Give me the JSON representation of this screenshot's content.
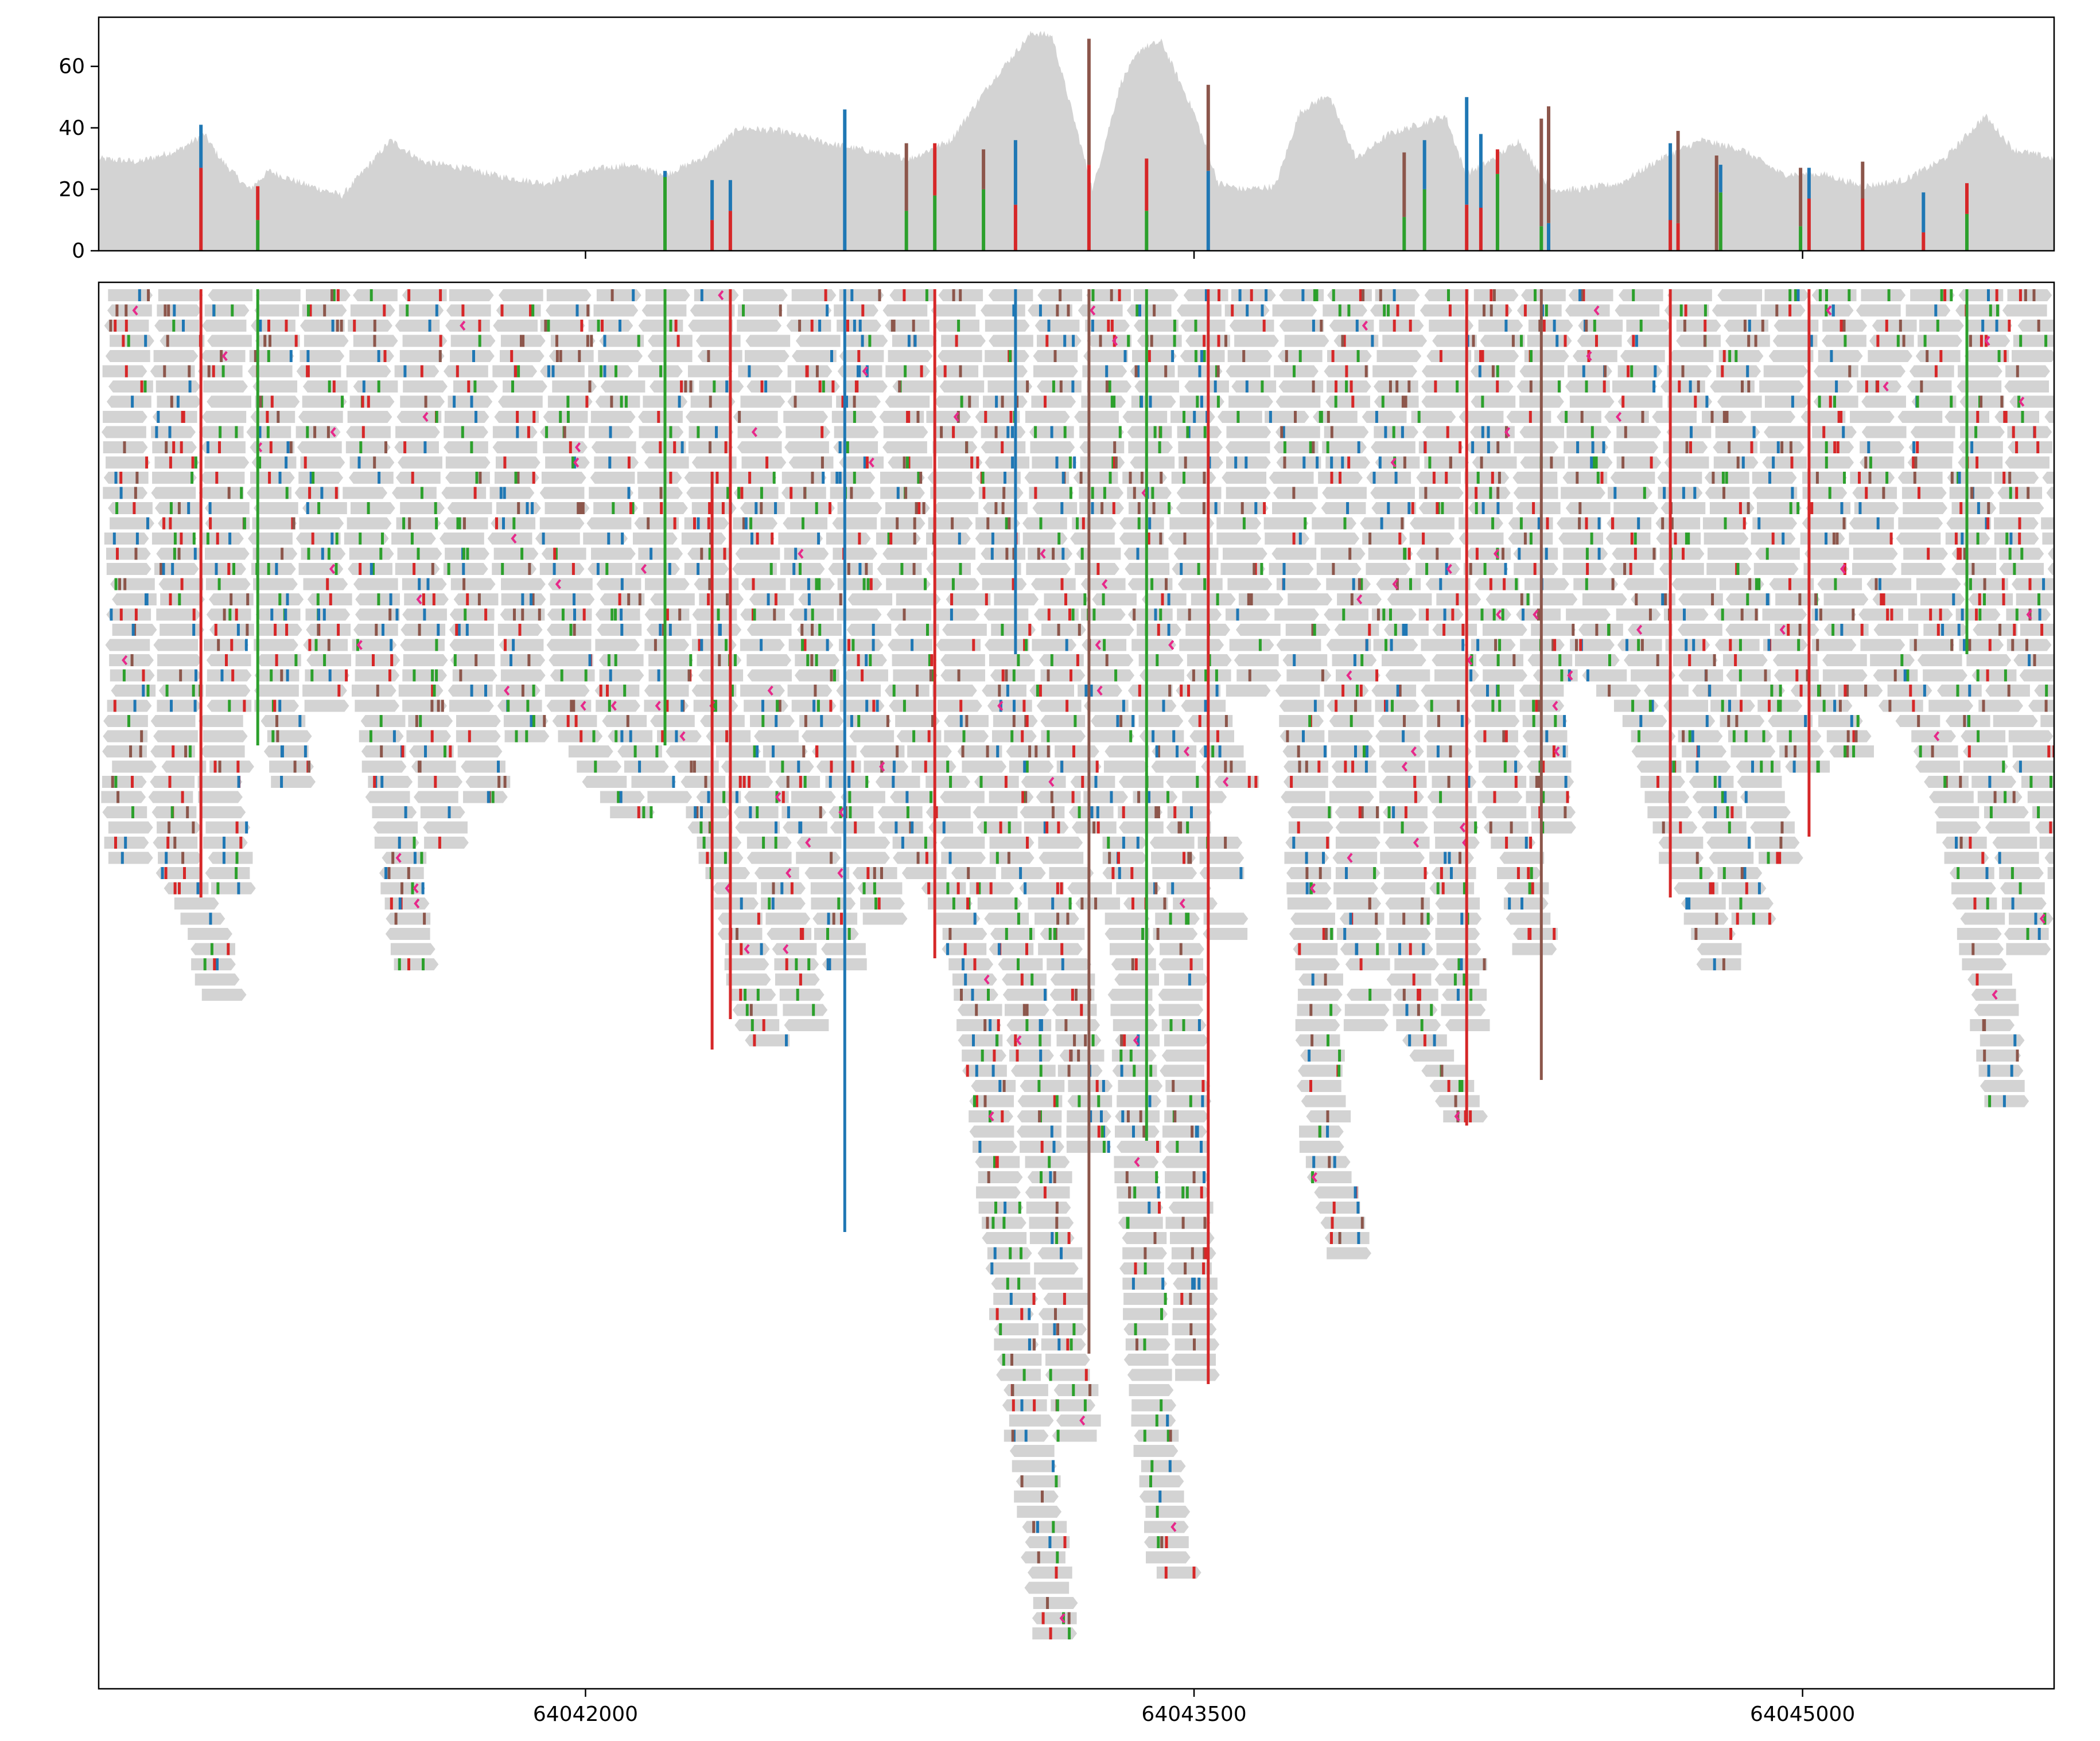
{
  "chart_data": [
    {
      "type": "area",
      "panel": "coverage",
      "title": "",
      "xlabel": "",
      "ylabel": "",
      "xlim": [
        64040800,
        64045620
      ],
      "ylim": [
        0,
        76
      ],
      "yticks": [
        0,
        20,
        40,
        60
      ],
      "grid": false,
      "legend": "none",
      "colors": {
        "coverage_fill": "#d3d3d3",
        "A": "#2ca02c",
        "C": "#1f77b4",
        "G": "#8c564b",
        "T": "#d62728",
        "indel": "#e7298a"
      },
      "coverage_profile": {
        "x": [
          64040800,
          64040900,
          64041000,
          64041060,
          64041100,
          64041170,
          64041220,
          64041300,
          64041400,
          64041520,
          64041600,
          64041700,
          64041800,
          64041900,
          64042000,
          64042100,
          64042200,
          64042300,
          64042380,
          64042480,
          64042600,
          64042720,
          64042800,
          64042900,
          64043000,
          64043100,
          64043150,
          64043200,
          64043250,
          64043280,
          64043320,
          64043370,
          64043420,
          64043500,
          64043560,
          64043620,
          64043700,
          64043760,
          64043830,
          64043900,
          64043980,
          64044050,
          64044120,
          64044170,
          64044240,
          64044300,
          64044380,
          64044450,
          64044550,
          64044650,
          64044750,
          64044850,
          64044950,
          64045050,
          64045150,
          64045250,
          64045350,
          64045450,
          64045520,
          64045620
        ],
        "y": [
          30,
          29,
          33,
          38,
          30,
          20,
          26,
          22,
          18,
          36,
          29,
          27,
          24,
          22,
          26,
          28,
          25,
          31,
          40,
          39,
          35,
          32,
          30,
          36,
          55,
          71,
          70,
          45,
          20,
          35,
          55,
          66,
          68,
          45,
          22,
          20,
          21,
          45,
          51,
          30,
          38,
          41,
          44,
          25,
          30,
          36,
          20,
          20,
          22,
          30,
          36,
          33,
          25,
          25,
          21,
          23,
          30,
          44,
          33,
          30
        ]
      },
      "variant_sites": [
        {
          "x": 64041052,
          "total": 41,
          "segments": [
            {
              "base": "T",
              "count": 27
            },
            {
              "base": "C",
              "count": 14
            }
          ]
        },
        {
          "x": 64041192,
          "total": 21,
          "segments": [
            {
              "base": "A",
              "count": 10
            },
            {
              "base": "T",
              "count": 11
            }
          ]
        },
        {
          "x": 64042196,
          "total": 26,
          "segments": [
            {
              "base": "A",
              "count": 24
            },
            {
              "base": "C",
              "count": 2
            }
          ]
        },
        {
          "x": 64042312,
          "total": 23,
          "segments": [
            {
              "base": "T",
              "count": 10
            },
            {
              "base": "C",
              "count": 13
            }
          ]
        },
        {
          "x": 64042357,
          "total": 23,
          "segments": [
            {
              "base": "T",
              "count": 13
            },
            {
              "base": "C",
              "count": 10
            }
          ]
        },
        {
          "x": 64042639,
          "total": 46,
          "segments": [
            {
              "base": "C",
              "count": 46
            }
          ]
        },
        {
          "x": 64042791,
          "total": 35,
          "segments": [
            {
              "base": "A",
              "count": 13
            },
            {
              "base": "G",
              "count": 22
            }
          ]
        },
        {
          "x": 64042861,
          "total": 35,
          "segments": [
            {
              "base": "A",
              "count": 18
            },
            {
              "base": "T",
              "count": 17
            }
          ]
        },
        {
          "x": 64042981,
          "total": 33,
          "segments": [
            {
              "base": "A",
              "count": 20
            },
            {
              "base": "G",
              "count": 13
            }
          ]
        },
        {
          "x": 64043060,
          "total": 36,
          "segments": [
            {
              "base": "T",
              "count": 15
            },
            {
              "base": "C",
              "count": 21
            }
          ]
        },
        {
          "x": 64043241,
          "total": 69,
          "segments": [
            {
              "base": "T",
              "count": 28
            },
            {
              "base": "G",
              "count": 41
            }
          ]
        },
        {
          "x": 64043383,
          "total": 30,
          "segments": [
            {
              "base": "A",
              "count": 13
            },
            {
              "base": "T",
              "count": 17
            }
          ]
        },
        {
          "x": 64043535,
          "total": 54,
          "segments": [
            {
              "base": "C",
              "count": 26
            },
            {
              "base": "G",
              "count": 28
            }
          ]
        },
        {
          "x": 64044018,
          "total": 32,
          "segments": [
            {
              "base": "A",
              "count": 11
            },
            {
              "base": "G",
              "count": 21
            }
          ]
        },
        {
          "x": 64044068,
          "total": 36,
          "segments": [
            {
              "base": "A",
              "count": 20
            },
            {
              "base": "C",
              "count": 16
            }
          ]
        },
        {
          "x": 64044172,
          "total": 50,
          "segments": [
            {
              "base": "T",
              "count": 15
            },
            {
              "base": "C",
              "count": 35
            }
          ]
        },
        {
          "x": 64044207,
          "total": 38,
          "segments": [
            {
              "base": "T",
              "count": 14
            },
            {
              "base": "C",
              "count": 24
            }
          ]
        },
        {
          "x": 64044248,
          "total": 33,
          "segments": [
            {
              "base": "A",
              "count": 25
            },
            {
              "base": "T",
              "count": 8
            }
          ]
        },
        {
          "x": 64044356,
          "total": 43,
          "segments": [
            {
              "base": "A",
              "count": 8
            },
            {
              "base": "G",
              "count": 35
            }
          ]
        },
        {
          "x": 64044374,
          "total": 47,
          "segments": [
            {
              "base": "C",
              "count": 9
            },
            {
              "base": "G",
              "count": 38
            }
          ]
        },
        {
          "x": 64044674,
          "total": 35,
          "segments": [
            {
              "base": "T",
              "count": 10
            },
            {
              "base": "C",
              "count": 25
            }
          ]
        },
        {
          "x": 64044693,
          "total": 39,
          "segments": [
            {
              "base": "T",
              "count": 9
            },
            {
              "base": "G",
              "count": 30
            }
          ]
        },
        {
          "x": 64044788,
          "total": 31,
          "segments": [
            {
              "base": "G",
              "count": 31
            }
          ]
        },
        {
          "x": 64044798,
          "total": 28,
          "segments": [
            {
              "base": "A",
              "count": 19
            },
            {
              "base": "C",
              "count": 9
            }
          ]
        },
        {
          "x": 64044995,
          "total": 27,
          "segments": [
            {
              "base": "A",
              "count": 8
            },
            {
              "base": "G",
              "count": 19
            }
          ]
        },
        {
          "x": 64045016,
          "total": 27,
          "segments": [
            {
              "base": "T",
              "count": 17
            },
            {
              "base": "C",
              "count": 10
            }
          ]
        },
        {
          "x": 64045148,
          "total": 29,
          "segments": [
            {
              "base": "T",
              "count": 17
            },
            {
              "base": "G",
              "count": 12
            }
          ]
        },
        {
          "x": 64045298,
          "total": 19,
          "segments": [
            {
              "base": "T",
              "count": 6
            },
            {
              "base": "C",
              "count": 13
            }
          ]
        },
        {
          "x": 64045405,
          "total": 22,
          "segments": [
            {
              "base": "A",
              "count": 12
            },
            {
              "base": "T",
              "count": 10
            }
          ]
        }
      ]
    },
    {
      "type": "pileup",
      "panel": "reads",
      "title": "",
      "xlabel": "",
      "ylabel": "",
      "xlim": [
        64040800,
        64045620
      ],
      "xticks": [
        64042000,
        64043500,
        64045000
      ],
      "xtick_labels": [
        "64042000",
        "64043500",
        "64045000"
      ],
      "grid": false,
      "legend": "none",
      "read_color": "#d3d3d3",
      "read_length_bp": 110,
      "row_count": 90,
      "variant_columns": [
        {
          "x": 64041052,
          "base": "T",
          "rows": [
            0,
            40
          ]
        },
        {
          "x": 64041192,
          "base": "A",
          "rows": [
            0,
            30
          ]
        },
        {
          "x": 64042196,
          "base": "A",
          "rows": [
            0,
            30
          ]
        },
        {
          "x": 64042312,
          "base": "T",
          "rows": [
            12,
            50
          ]
        },
        {
          "x": 64042357,
          "base": "T",
          "rows": [
            0,
            48
          ]
        },
        {
          "x": 64042639,
          "base": "C",
          "rows": [
            0,
            62
          ]
        },
        {
          "x": 64042861,
          "base": "T",
          "rows": [
            0,
            44
          ]
        },
        {
          "x": 64043060,
          "base": "C",
          "rows": [
            0,
            24
          ]
        },
        {
          "x": 64043241,
          "base": "G",
          "rows": [
            0,
            70
          ]
        },
        {
          "x": 64043383,
          "base": "A",
          "rows": [
            0,
            56
          ]
        },
        {
          "x": 64043535,
          "base": "T",
          "rows": [
            0,
            72
          ]
        },
        {
          "x": 64044172,
          "base": "T",
          "rows": [
            0,
            55
          ]
        },
        {
          "x": 64044356,
          "base": "G",
          "rows": [
            0,
            52
          ]
        },
        {
          "x": 64044674,
          "base": "T",
          "rows": [
            0,
            40
          ]
        },
        {
          "x": 64045016,
          "base": "T",
          "rows": [
            0,
            36
          ]
        },
        {
          "x": 64045405,
          "base": "A",
          "rows": [
            0,
            24
          ]
        }
      ]
    }
  ]
}
